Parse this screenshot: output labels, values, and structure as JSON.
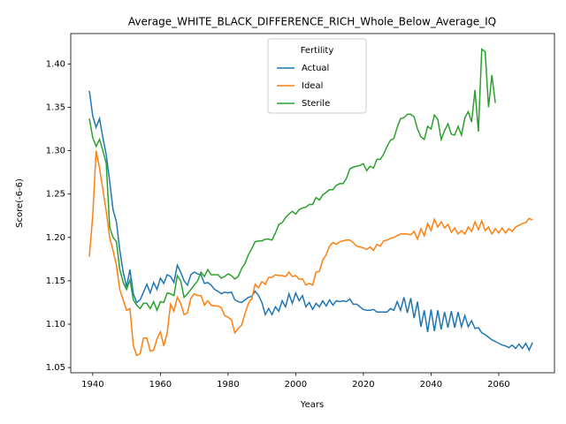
{
  "chart_data": {
    "type": "line",
    "title": "Average_WHITE_BLACK_DIFFERENCE_RICH_Whole_Below_Average_IQ",
    "x_label": "Years",
    "y_label": "Score(-6-6)",
    "legend_title": "Fertility",
    "legend": "upper center",
    "x": [
      1939,
      1940,
      1941,
      1942,
      1943,
      1944,
      1945,
      1946,
      1947,
      1948,
      1949,
      1950,
      1951,
      1952,
      1953,
      1954,
      1955,
      1956,
      1957,
      1958,
      1959,
      1960,
      1961,
      1962,
      1963,
      1964,
      1965,
      1966,
      1967,
      1968,
      1969,
      1970,
      1971,
      1972,
      1973,
      1974,
      1975,
      1976,
      1977,
      1978,
      1979,
      1980,
      1981,
      1982,
      1983,
      1984,
      1985,
      1986,
      1987,
      1988,
      1989,
      1990,
      1991,
      1992,
      1993,
      1994,
      1995,
      1996,
      1997,
      1998,
      1999,
      2000,
      2001,
      2002,
      2003,
      2004,
      2005,
      2006,
      2007,
      2008,
      2009,
      2010,
      2011,
      2012,
      2013,
      2014,
      2015,
      2016,
      2017,
      2018,
      2019,
      2020,
      2021,
      2022,
      2023,
      2024,
      2025,
      2026,
      2027,
      2028,
      2029,
      2030,
      2031,
      2032,
      2033,
      2034,
      2035,
      2036,
      2037,
      2038,
      2039,
      2040,
      2041,
      2042,
      2043,
      2044,
      2045,
      2046,
      2047,
      2048,
      2049,
      2050,
      2051,
      2052,
      2053,
      2054,
      2055,
      2056,
      2057,
      2058,
      2059,
      2060,
      2061,
      2062,
      2063,
      2064,
      2065,
      2066,
      2067,
      2068,
      2069,
      2070
    ],
    "series": [
      {
        "name": "Actual",
        "color": "#1f77b4",
        "values": [
          1.369,
          1.34,
          1.327,
          1.337,
          1.315,
          1.295,
          1.265,
          1.232,
          1.218,
          1.185,
          1.16,
          1.143,
          1.163,
          1.135,
          1.125,
          1.128,
          1.137,
          1.146,
          1.136,
          1.148,
          1.14,
          1.153,
          1.147,
          1.157,
          1.155,
          1.148,
          1.168,
          1.16,
          1.15,
          1.145,
          1.157,
          1.16,
          1.158,
          1.157,
          1.147,
          1.148,
          1.145,
          1.14,
          1.138,
          1.135,
          1.137,
          1.136,
          1.137,
          1.128,
          1.126,
          1.125,
          1.128,
          1.131,
          1.132,
          1.138,
          1.133,
          1.125,
          1.111,
          1.118,
          1.111,
          1.12,
          1.115,
          1.127,
          1.12,
          1.135,
          1.124,
          1.136,
          1.127,
          1.133,
          1.12,
          1.125,
          1.117,
          1.124,
          1.12,
          1.127,
          1.121,
          1.128,
          1.122,
          1.127,
          1.126,
          1.127,
          1.126,
          1.129,
          1.123,
          1.123,
          1.12,
          1.117,
          1.116,
          1.116,
          1.117,
          1.114,
          1.114,
          1.114,
          1.114,
          1.118,
          1.116,
          1.126,
          1.116,
          1.131,
          1.113,
          1.13,
          1.107,
          1.126,
          1.097,
          1.116,
          1.091,
          1.117,
          1.092,
          1.116,
          1.094,
          1.114,
          1.096,
          1.115,
          1.096,
          1.114,
          1.097,
          1.11,
          1.097,
          1.104,
          1.095,
          1.096,
          1.09,
          1.088,
          1.085,
          1.082,
          1.08,
          1.078,
          1.076,
          1.075,
          1.073,
          1.076,
          1.072,
          1.077,
          1.072,
          1.078,
          1.07,
          1.079
        ]
      },
      {
        "name": "Ideal",
        "color": "#ff7f0e",
        "values": [
          1.178,
          1.225,
          1.3,
          1.28,
          1.255,
          1.23,
          1.2,
          1.185,
          1.168,
          1.14,
          1.128,
          1.116,
          1.118,
          1.075,
          1.064,
          1.066,
          1.084,
          1.084,
          1.069,
          1.07,
          1.083,
          1.091,
          1.075,
          1.09,
          1.123,
          1.115,
          1.131,
          1.124,
          1.111,
          1.113,
          1.13,
          1.135,
          1.133,
          1.133,
          1.122,
          1.127,
          1.122,
          1.121,
          1.121,
          1.119,
          1.11,
          1.108,
          1.105,
          1.09,
          1.095,
          1.099,
          1.112,
          1.124,
          1.129,
          1.146,
          1.142,
          1.149,
          1.146,
          1.154,
          1.154,
          1.157,
          1.156,
          1.156,
          1.155,
          1.16,
          1.155,
          1.156,
          1.152,
          1.152,
          1.145,
          1.147,
          1.145,
          1.16,
          1.161,
          1.174,
          1.18,
          1.19,
          1.194,
          1.192,
          1.195,
          1.196,
          1.197,
          1.197,
          1.194,
          1.19,
          1.189,
          1.188,
          1.186,
          1.189,
          1.185,
          1.192,
          1.19,
          1.196,
          1.197,
          1.199,
          1.2,
          1.202,
          1.204,
          1.204,
          1.204,
          1.203,
          1.207,
          1.198,
          1.21,
          1.202,
          1.216,
          1.208,
          1.221,
          1.212,
          1.218,
          1.211,
          1.215,
          1.206,
          1.211,
          1.204,
          1.208,
          1.204,
          1.212,
          1.207,
          1.218,
          1.209,
          1.219,
          1.208,
          1.212,
          1.204,
          1.21,
          1.205,
          1.211,
          1.205,
          1.21,
          1.207,
          1.212,
          1.214,
          1.216,
          1.217,
          1.222,
          1.22
        ]
      },
      {
        "name": "Sterile",
        "color": "#2ca02c",
        "values": [
          1.337,
          1.315,
          1.305,
          1.313,
          1.3,
          1.285,
          1.212,
          1.2,
          1.195,
          1.163,
          1.148,
          1.14,
          1.151,
          1.128,
          1.122,
          1.118,
          1.124,
          1.124,
          1.118,
          1.126,
          1.116,
          1.126,
          1.125,
          1.136,
          1.135,
          1.133,
          1.156,
          1.15,
          1.131,
          1.135,
          1.14,
          1.145,
          1.15,
          1.16,
          1.155,
          1.163,
          1.157,
          1.157,
          1.157,
          1.153,
          1.155,
          1.158,
          1.156,
          1.152,
          1.155,
          1.164,
          1.17,
          1.18,
          1.187,
          1.195,
          1.196,
          1.196,
          1.198,
          1.198,
          1.197,
          1.205,
          1.215,
          1.217,
          1.223,
          1.227,
          1.23,
          1.227,
          1.232,
          1.234,
          1.235,
          1.238,
          1.238,
          1.246,
          1.243,
          1.249,
          1.252,
          1.255,
          1.255,
          1.26,
          1.262,
          1.262,
          1.268,
          1.279,
          1.281,
          1.282,
          1.283,
          1.285,
          1.277,
          1.282,
          1.28,
          1.29,
          1.29,
          1.296,
          1.305,
          1.312,
          1.314,
          1.327,
          1.337,
          1.338,
          1.342,
          1.342,
          1.339,
          1.325,
          1.316,
          1.313,
          1.328,
          1.325,
          1.341,
          1.336,
          1.313,
          1.323,
          1.331,
          1.319,
          1.318,
          1.328,
          1.318,
          1.338,
          1.345,
          1.333,
          1.37,
          1.322,
          1.417,
          1.414,
          1.35,
          1.387,
          1.355,
          null,
          null,
          null,
          null,
          null,
          null,
          null,
          null,
          null,
          null,
          null
        ]
      }
    ],
    "xlim": [
      1933.5,
      2076.5
    ],
    "xticks": [
      1940,
      1960,
      1980,
      2000,
      2020,
      2040,
      2060
    ],
    "ylim": [
      1.044,
      1.435
    ],
    "yticks": [
      1.05,
      {
        "value": 1.1,
        "label": "1.10"
      },
      1.15,
      {
        "value": 1.2,
        "label": "1.20"
      },
      1.25,
      {
        "value": 1.3,
        "label": "1.30"
      },
      1.35,
      {
        "value": 1.4,
        "label": "1.40"
      }
    ]
  }
}
